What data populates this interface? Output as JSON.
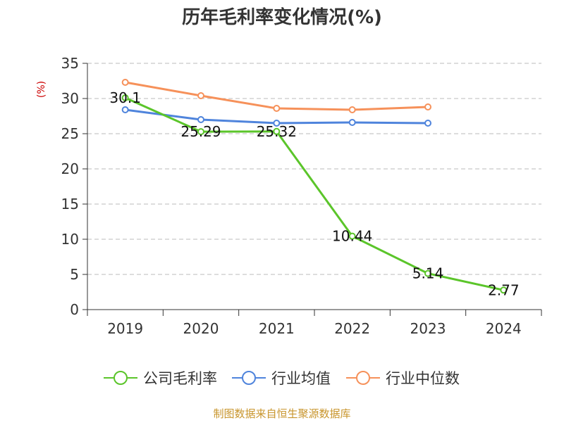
{
  "chart_data": {
    "type": "line",
    "title": "历年毛利率变化情况(%)",
    "ylabel": "(%)",
    "xlabel": "",
    "categories": [
      "2019",
      "2020",
      "2021",
      "2022",
      "2023",
      "2024"
    ],
    "ylim": [
      0,
      35
    ],
    "yticks": [
      0,
      5,
      10,
      15,
      20,
      25,
      30,
      35
    ],
    "grid": true,
    "legend_position": "bottom",
    "series": [
      {
        "name": "公司毛利率",
        "color": "#5bc52a",
        "values": [
          30.1,
          25.29,
          25.32,
          10.44,
          5.14,
          2.77
        ],
        "data_labels": [
          "30.1",
          "25.29",
          "25.32",
          "10.44",
          "5.14",
          "2.77"
        ]
      },
      {
        "name": "行业均值",
        "color": "#4f84dc",
        "values": [
          28.4,
          27.0,
          26.5,
          26.6,
          26.5,
          null
        ],
        "data_labels": []
      },
      {
        "name": "行业中位数",
        "color": "#f6915a",
        "values": [
          32.3,
          30.4,
          28.6,
          28.4,
          28.8,
          null
        ],
        "data_labels": []
      }
    ]
  },
  "footer": {
    "source_text": "制图数据来自恒生聚源数据库",
    "source_color": "#c8952c"
  },
  "styles": {
    "title_color": "#333333",
    "ylabel_color": "#cc0000",
    "axis_color": "#333333",
    "grid_color": "#bbbbbb"
  }
}
